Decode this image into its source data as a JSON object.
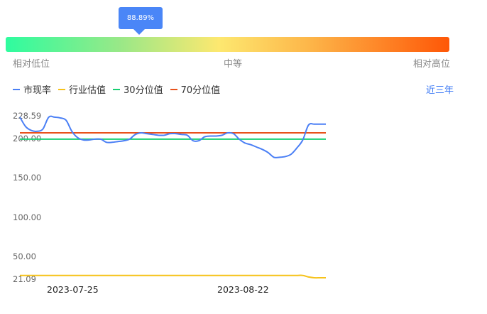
{
  "marker": {
    "label": "88.89%",
    "value": 88.89
  },
  "scale": {
    "low": "相对低位",
    "mid": "中等",
    "high": "相对高位"
  },
  "legend": [
    {
      "label": "市现率",
      "color": "#4a7ff5"
    },
    {
      "label": "行业估值",
      "color": "#f6c21a"
    },
    {
      "label": "30分位值",
      "color": "#18cf72"
    },
    {
      "label": "70分位值",
      "color": "#e8521c"
    }
  ],
  "period": "近三年",
  "chart_data": {
    "type": "line",
    "y_ticks": [
      "228.59",
      "200.00",
      "150.00",
      "100.00",
      "50.00",
      "21.09"
    ],
    "ylim": [
      21.09,
      228.59
    ],
    "x_ticks": [
      "2023-07-25",
      "2023-08-22"
    ],
    "series": [
      {
        "name": "市现率",
        "color": "#4a7ff5",
        "values": [
          226,
          214,
          209,
          208,
          211,
          226,
          226,
          225,
          222,
          208,
          200,
          197,
          197,
          198,
          198,
          194,
          194,
          195,
          196,
          198,
          204,
          206,
          205,
          204,
          203,
          203,
          205,
          205,
          204,
          203,
          196,
          196,
          201,
          202,
          202,
          203,
          206,
          205,
          198,
          193,
          191,
          188,
          185,
          181,
          175,
          175,
          176,
          179,
          187,
          197,
          216,
          217,
          217,
          217
        ]
      },
      {
        "name": "行业估值",
        "color": "#f6c21a",
        "values": [
          25,
          25,
          25,
          25,
          25,
          25,
          25,
          25,
          25,
          25,
          25,
          25,
          25,
          25,
          25,
          25,
          25,
          25,
          25,
          25,
          25,
          25,
          25,
          25,
          25,
          25,
          25,
          25,
          25,
          25,
          25,
          25,
          25,
          25,
          25,
          25,
          25,
          25,
          25,
          25,
          25,
          25,
          25,
          25,
          25,
          25,
          25,
          25,
          25,
          25,
          23,
          22,
          22,
          22
        ]
      },
      {
        "name": "30分位值",
        "color": "#18cf72",
        "values": [
          198,
          198
        ]
      },
      {
        "name": "70分位值",
        "color": "#e8521c",
        "values": [
          206,
          206
        ]
      }
    ]
  }
}
